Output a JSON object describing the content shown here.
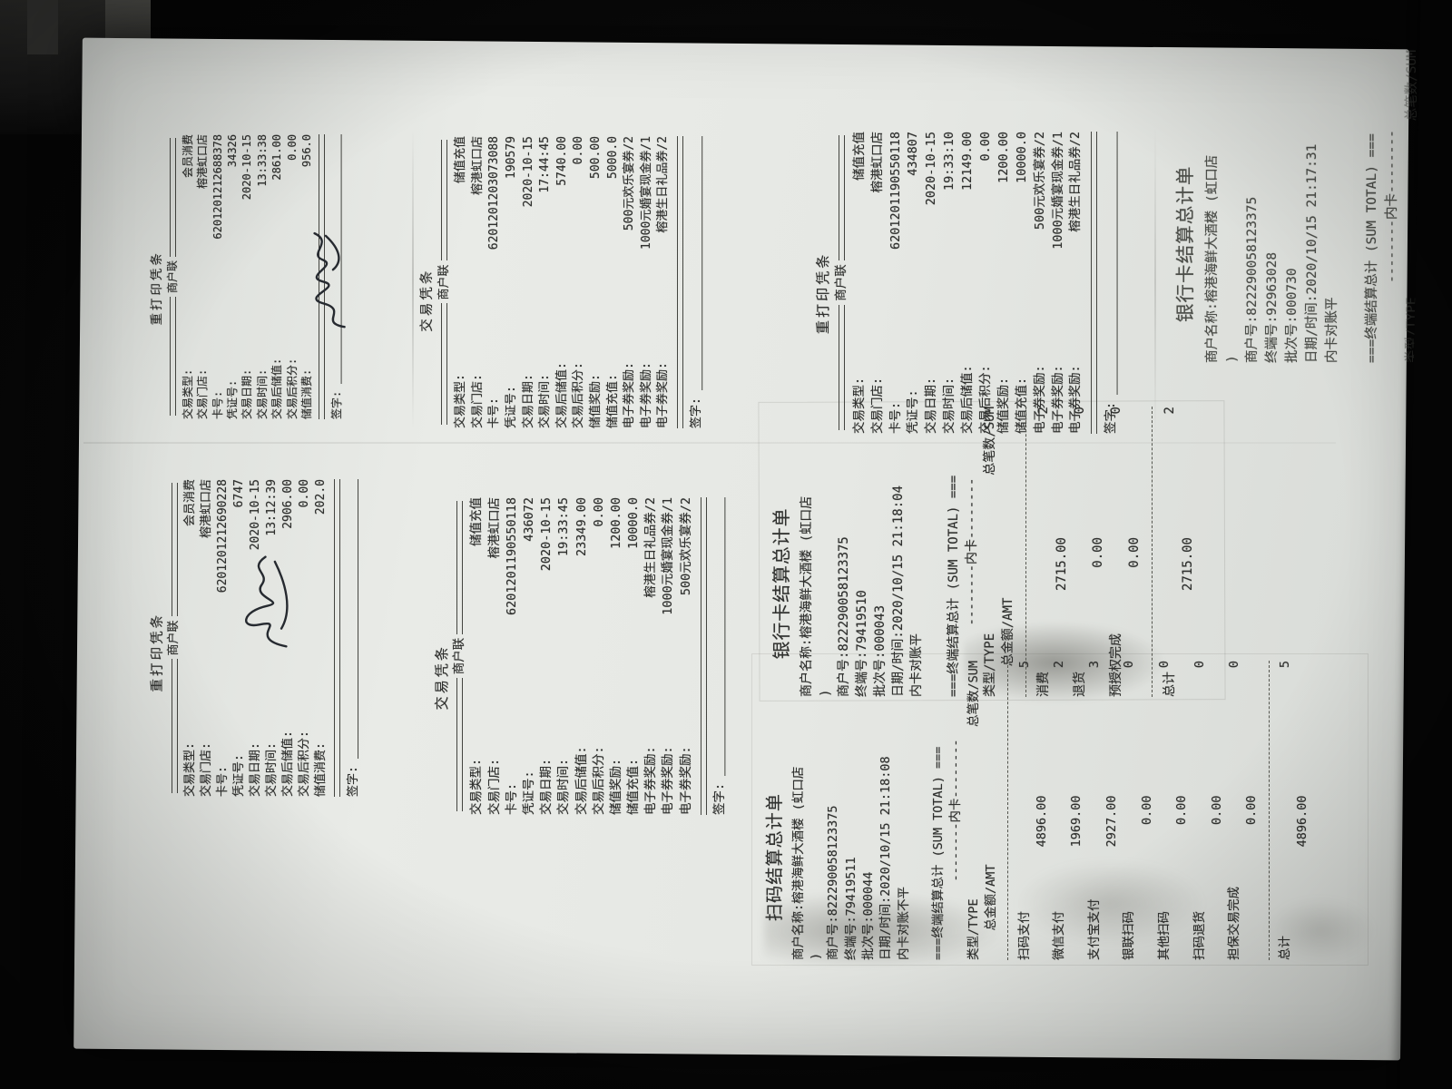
{
  "scene": {
    "description": "Photocopied sheet with eight rotated Chinese POS receipts on a dark desk",
    "paper_color": "#e6e8e4",
    "background_color": "#060606",
    "ink_color": "#2f302e"
  },
  "receipts": [
    {
      "id": "r1",
      "kind": "voucher",
      "title": "重打印凭条",
      "copy": "商户联",
      "sign_label": "签字:",
      "signed": true,
      "fields": [
        [
          "交易类型:",
          "会员消费"
        ],
        [
          "交易门店:",
          "榕港虹口店"
        ],
        [
          "卡号:",
          "6201201212688378"
        ],
        [
          "凭证号:",
          "34326"
        ],
        [
          "交易日期:",
          "2020-10-15"
        ],
        [
          "交易时间:",
          "13:33:38"
        ],
        [
          "交易后储值:",
          "2861.00"
        ],
        [
          "交易后积分:",
          "0.00"
        ],
        [
          "储值消费:",
          "956.0"
        ]
      ]
    },
    {
      "id": "r2",
      "kind": "voucher",
      "title": "交易凭条",
      "copy": "商户联",
      "sign_label": "签字:",
      "signed": false,
      "fields": [
        [
          "交易类型:",
          "储值充值"
        ],
        [
          "交易门店:",
          "榕港虹口店"
        ],
        [
          "卡号:",
          "6201201203073088"
        ],
        [
          "凭证号:",
          "190579"
        ],
        [
          "交易日期:",
          "2020-10-15"
        ],
        [
          "交易时间:",
          "17:44:45"
        ],
        [
          "交易后储值:",
          "5740.00"
        ],
        [
          "交易后积分:",
          "0.00"
        ],
        [
          "储值奖励:",
          "500.00"
        ],
        [
          "储值充值:",
          "5000.0"
        ],
        [
          "电子券奖励:",
          "500元欢乐宴券/2"
        ],
        [
          "电子券奖励:",
          "1000元婚宴现金券/1"
        ],
        [
          "电子券奖励:",
          "榕港生日礼品券/2"
        ]
      ]
    },
    {
      "id": "r3",
      "kind": "voucher",
      "title": "重打印凭条",
      "copy": "商户联",
      "sign_label": "签字:",
      "signed": false,
      "fields": [
        [
          "交易类型:",
          "储值充值"
        ],
        [
          "交易门店:",
          "榕港虹口店"
        ],
        [
          "卡号:",
          "6201201190550118"
        ],
        [
          "凭证号:",
          "434807"
        ],
        [
          "交易日期:",
          "2020-10-15"
        ],
        [
          "交易时间:",
          "19:33:10"
        ],
        [
          "交易后储值:",
          "12149.00"
        ],
        [
          "交易后积分:",
          "0.00"
        ],
        [
          "储值奖励:",
          "1200.00"
        ],
        [
          "储值充值:",
          "10000.0"
        ],
        [
          "电子券奖励:",
          "500元欢乐宴券/2"
        ],
        [
          "电子券奖励:",
          "1000元婚宴现金券/1"
        ],
        [
          "电子券奖励:",
          "榕港生日礼品券/2"
        ]
      ]
    },
    {
      "id": "r4",
      "kind": "settlement",
      "faint_tail": true,
      "title": "银行卡结算总计单",
      "head": [
        "商户名称:榕港海鲜大酒楼 (虹口店",
        ")",
        "商户号:822290058123375",
        "终端号:92963028",
        "批次号:000730",
        "日期/时间:2020/10/15 21:17:31",
        "内卡对账平"
      ],
      "banner": "===终端结算总计 (SUM TOTAL) ===",
      "inner": "--------内卡--------",
      "col_type": "类型/TYPE",
      "col_count": "总笔数/SUM",
      "col_amount": "总金额/AMT"
    },
    {
      "id": "r5",
      "kind": "voucher",
      "title": "重打印凭条",
      "copy": "商户联",
      "sign_label": "签字:",
      "signed": true,
      "fields": [
        [
          "交易类型:",
          "会员消费"
        ],
        [
          "交易门店:",
          "榕港虹口店"
        ],
        [
          "卡号:",
          "6201201212690228"
        ],
        [
          "凭证号:",
          "6747"
        ],
        [
          "交易日期:",
          "2020-10-15"
        ],
        [
          "交易时间:",
          "13:12:39"
        ],
        [
          "交易后储值:",
          "2906.00"
        ],
        [
          "交易后积分:",
          "0.00"
        ],
        [
          "储值消费:",
          "202.0"
        ]
      ]
    },
    {
      "id": "r6",
      "kind": "voucher",
      "title": "交易凭条",
      "copy": "商户联",
      "sign_label": "签字:",
      "signed": false,
      "fields": [
        [
          "交易类型:",
          "储值充值"
        ],
        [
          "交易门店:",
          "榕港虹口店"
        ],
        [
          "卡号:",
          "6201201190550118"
        ],
        [
          "凭证号:",
          "436072"
        ],
        [
          "交易日期:",
          "2020-10-15"
        ],
        [
          "交易时间:",
          "19:33:45"
        ],
        [
          "交易后储值:",
          "23349.00"
        ],
        [
          "交易后积分:",
          "0.00"
        ],
        [
          "储值奖励:",
          "1200.00"
        ],
        [
          "储值充值:",
          "10000.0"
        ],
        [
          "电子券奖励:",
          "榕港生日礼品券/2"
        ],
        [
          "电子券奖励:",
          "1000元婚宴现金券/1"
        ],
        [
          "电子券奖励:",
          "500元欢乐宴券/2"
        ]
      ]
    },
    {
      "id": "r7",
      "kind": "settlement",
      "title": "银行卡结算总计单",
      "head": [
        "商户名称:榕港海鲜大酒楼 (虹口店",
        ")",
        "商户号:822290058123375",
        "终端号:79419510",
        "批次号:000043",
        "日期/时间:2020/10/15 21:18:04",
        "内卡对账平"
      ],
      "banner": "===终端结算总计 (SUM TOTAL) ===",
      "inner": "--------内卡--------",
      "col_type": "类型/TYPE",
      "col_count": "总笔数/SUM",
      "col_amount": "总金额/AMT",
      "rows": [
        [
          "消费",
          "2",
          "2715.00"
        ],
        [
          "退货",
          "0",
          "0.00"
        ],
        [
          "预授权完成",
          "0",
          "0.00"
        ]
      ],
      "total": [
        "总计",
        "2",
        "2715.00"
      ]
    },
    {
      "id": "r8",
      "kind": "settlement",
      "title": "扫码结算总计单",
      "head": [
        "商户名称:榕港海鲜大酒楼 (虹口店",
        ")",
        "商户号:822290058123375",
        "终端号:79419511",
        "批次号:000044",
        "日期/时间:2020/10/15 21:18:08",
        "内卡对账不平"
      ],
      "banner": "===终端结算总计 (SUM TOTAL) ===",
      "inner": "--------内卡--------",
      "col_type": "类型/TYPE",
      "col_count": "总笔数/SUM",
      "col_amount": "总金额/AMT",
      "rows": [
        [
          "扫码支付",
          "5",
          "4896.00"
        ],
        [
          "微信支付",
          "2",
          "1969.00"
        ],
        [
          "支付宝支付",
          "3",
          "2927.00"
        ],
        [
          "银联扫码",
          "0",
          "0.00"
        ],
        [
          "其他扫码",
          "0",
          "0.00"
        ],
        [
          "扫码退货",
          "0",
          "0.00"
        ],
        [
          "担保交易完成",
          "0",
          "0.00"
        ]
      ],
      "total": [
        "总计",
        "5",
        "4896.00"
      ]
    }
  ]
}
